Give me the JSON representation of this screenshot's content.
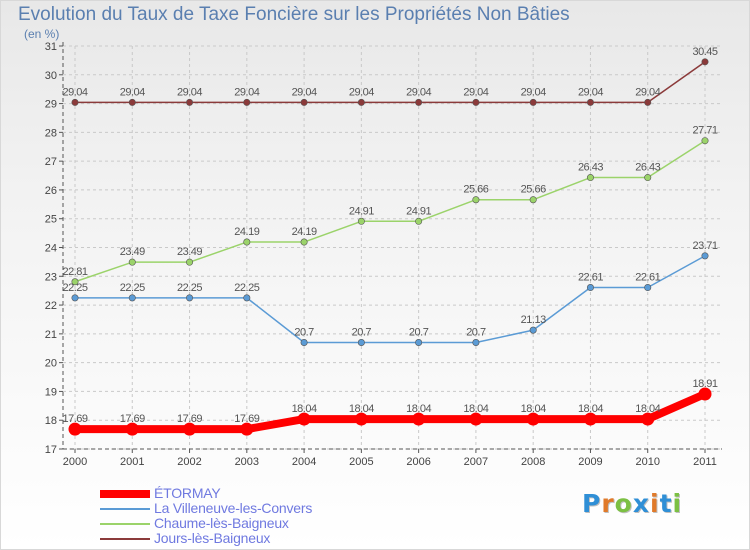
{
  "title": "Evolution du Taux de Taxe Foncière sur les Propriétés Non Bâties",
  "unit_label": "(en %)",
  "logo": {
    "letters": [
      {
        "char": "P",
        "color": "#2f8fd6"
      },
      {
        "char": "r",
        "color": "#e07a2a"
      },
      {
        "char": "o",
        "color": "#7cc043"
      },
      {
        "char": "x",
        "color": "#2f8fd6"
      },
      {
        "char": "i",
        "color": "#e07a2a"
      },
      {
        "char": "t",
        "color": "#2f8fd6"
      },
      {
        "char": "i",
        "color": "#7cc043"
      }
    ]
  },
  "chart_data": {
    "type": "line",
    "title": "Evolution du Taux de Taxe Foncière sur les Propriétés Non Bâties",
    "ylabel": "(en %)",
    "xlabel": "",
    "x": [
      "2000",
      "2001",
      "2002",
      "2003",
      "2004",
      "2005",
      "2006",
      "2007",
      "2008",
      "2009",
      "2010",
      "2011"
    ],
    "ylim": [
      17,
      31
    ],
    "yticks": [
      "17",
      "18",
      "19",
      "20",
      "21",
      "22",
      "23",
      "24",
      "25",
      "26",
      "27",
      "28",
      "29",
      "30",
      "31"
    ],
    "grid": true,
    "legend_position": "bottom-left",
    "series": [
      {
        "name": "ÉTORMAY",
        "color": "#ff0000",
        "values": [
          17.69,
          17.69,
          17.69,
          17.69,
          18.04,
          18.04,
          18.04,
          18.04,
          18.04,
          18.04,
          18.04,
          18.91
        ],
        "labels": [
          "17.69",
          "17.69",
          "17.69",
          "17.69",
          "18.04",
          "18.04",
          "18.04",
          "18.04",
          "18.04",
          "18.04",
          "18.04",
          "18.91"
        ]
      },
      {
        "name": "La Villeneuve-les-Convers",
        "color": "#5b9bd5",
        "values": [
          22.25,
          22.25,
          22.25,
          22.25,
          20.7,
          20.7,
          20.7,
          20.7,
          21.13,
          22.61,
          22.61,
          23.71
        ],
        "labels": [
          "22.25",
          "22.25",
          "22.25",
          "22.25",
          "20.7",
          "20.7",
          "20.7",
          "20.7",
          "21.13",
          "22.61",
          "22.61",
          "23.71"
        ]
      },
      {
        "name": "Chaume-lès-Baigneux",
        "color": "#9bd36a",
        "values": [
          22.81,
          23.49,
          23.49,
          24.19,
          24.19,
          24.91,
          24.91,
          25.66,
          25.66,
          26.43,
          26.43,
          27.71
        ],
        "labels": [
          "22.81",
          "23.49",
          "23.49",
          "24.19",
          "24.19",
          "24.91",
          "24.91",
          "25.66",
          "25.66",
          "26.43",
          "26.43",
          "27.71"
        ]
      },
      {
        "name": "Jours-lès-Baigneux",
        "color": "#8b3a3a",
        "values": [
          29.04,
          29.04,
          29.04,
          29.04,
          29.04,
          29.04,
          29.04,
          29.04,
          29.04,
          29.04,
          29.04,
          30.45
        ],
        "labels": [
          "29.04",
          "29.04",
          "29.04",
          "29.04",
          "29.04",
          "29.04",
          "29.04",
          "29.04",
          "29.04",
          "29.04",
          "29.04",
          "30.45"
        ]
      }
    ]
  }
}
